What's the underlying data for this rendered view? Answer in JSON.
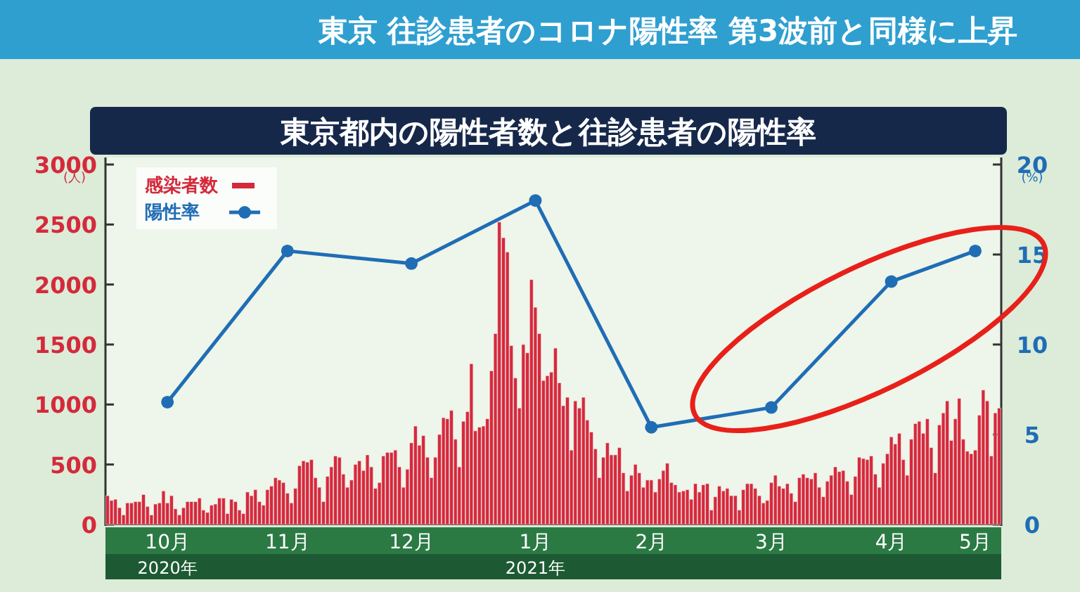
{
  "chart_data": {
    "type": "bar",
    "subtitle": "東京 往診患者のコロナ陽性率 第3波前と同様に上昇",
    "title": "東京都内の陽性者数と往診患者の陽性率",
    "categories": [
      null,
      null,
      null,
      null,
      null,
      null,
      null,
      null,
      null,
      null,
      null,
      null,
      null,
      null,
      null,
      "10月",
      null,
      null,
      null,
      null,
      null,
      null,
      null,
      null,
      null,
      null,
      null,
      null,
      null,
      null,
      null,
      null,
      null,
      null,
      null,
      null,
      null,
      null,
      null,
      null,
      null,
      null,
      null,
      null,
      null,
      "11月",
      null,
      null,
      null,
      null,
      null,
      null,
      null,
      null,
      null,
      null,
      null,
      null,
      null,
      null,
      null,
      null,
      null,
      null,
      null,
      null,
      null,
      null,
      null,
      null,
      null,
      null,
      null,
      null,
      null,
      null,
      "12月",
      null,
      null,
      null,
      null,
      null,
      null,
      null,
      null,
      null,
      null,
      null,
      null,
      null,
      null,
      null,
      null,
      null,
      null,
      null,
      null,
      null,
      null,
      null,
      null,
      null,
      null,
      null,
      null,
      null,
      null,
      "1月",
      null,
      null,
      null,
      null,
      null,
      null,
      null,
      null,
      null,
      null,
      null,
      null,
      null,
      null,
      null,
      null,
      null,
      null,
      null,
      null,
      null,
      null,
      null,
      null,
      null,
      null,
      null,
      null,
      "2月",
      null,
      null,
      null,
      null,
      null,
      null,
      null,
      null,
      null,
      null,
      null,
      null,
      null,
      null,
      null,
      null,
      null,
      null,
      null,
      null,
      null,
      null,
      null,
      null,
      null,
      null,
      null,
      null,
      null,
      "3月",
      null,
      null,
      null,
      null,
      null,
      null,
      null,
      null,
      null,
      null,
      null,
      null,
      null,
      null,
      null,
      null,
      null,
      null,
      null,
      null,
      null,
      null,
      null,
      null,
      null,
      null,
      null,
      null,
      null,
      "4月",
      null,
      null,
      null,
      null,
      null,
      null,
      null,
      null,
      null,
      null,
      null,
      null,
      null,
      null,
      null,
      null,
      null,
      null,
      null,
      null,
      "5月",
      null,
      null,
      null,
      null,
      null,
      null
    ],
    "series": [
      {
        "name": "感染者数",
        "color": "#d42a3c",
        "values": [
          240,
          200,
          210,
          140,
          80,
          180,
          180,
          190,
          190,
          250,
          150,
          80,
          170,
          180,
          280,
          180,
          240,
          130,
          80,
          140,
          190,
          190,
          190,
          220,
          120,
          100,
          160,
          170,
          220,
          220,
          90,
          210,
          190,
          120,
          90,
          270,
          240,
          290,
          190,
          160,
          290,
          320,
          390,
          370,
          350,
          260,
          180,
          300,
          490,
          530,
          520,
          540,
          390,
          310,
          190,
          400,
          480,
          570,
          560,
          420,
          310,
          370,
          500,
          530,
          450,
          580,
          480,
          300,
          350,
          570,
          600,
          600,
          620,
          480,
          310,
          460,
          680,
          820,
          660,
          740,
          560,
          390,
          560,
          750,
          890,
          880,
          950,
          710,
          480,
          860,
          940,
          1340,
          780,
          810,
          820,
          880,
          1280,
          1590,
          2520,
          2390,
          2270,
          1490,
          1220,
          970,
          1500,
          1430,
          2040,
          1810,
          1590,
          1200,
          1240,
          1270,
          1470,
          1180,
          990,
          1060,
          620,
          1030,
          970,
          1060,
          870,
          770,
          630,
          390,
          560,
          680,
          580,
          580,
          640,
          430,
          280,
          410,
          500,
          430,
          310,
          370,
          370,
          270,
          380,
          450,
          510,
          350,
          330,
          270,
          280,
          290,
          210,
          340,
          270,
          330,
          340,
          120,
          230,
          320,
          280,
          300,
          240,
          240,
          120,
          290,
          340,
          340,
          300,
          240,
          180,
          200,
          350,
          410,
          320,
          300,
          340,
          260,
          190,
          390,
          420,
          390,
          380,
          430,
          310,
          230,
          360,
          410,
          480,
          440,
          450,
          360,
          250,
          400,
          560,
          550,
          540,
          570,
          420,
          310,
          510,
          590,
          730,
          670,
          760,
          540,
          410,
          710,
          840,
          860,
          760,
          880,
          640,
          430,
          830,
          930,
          1030,
          700,
          880,
          1050,
          710,
          610,
          590,
          620,
          910,
          1120,
          1030,
          570,
          930,
          970
        ]
      },
      {
        "name": "陽性率",
        "type": "line",
        "axis": "y2",
        "color": "#1f6db5",
        "x": [
          "10月",
          "11月",
          "12月",
          "1月",
          "2月",
          "3月",
          "4月",
          "5月"
        ],
        "values": [
          6.8,
          15.2,
          14.5,
          18.0,
          5.4,
          6.5,
          13.5,
          15.2
        ]
      }
    ],
    "ylabel": "(人)",
    "y2label": "(%)",
    "ylim": [
      0,
      3000
    ],
    "yticks": [
      0,
      500,
      1000,
      1500,
      2000,
      2500,
      3000
    ],
    "y2lim": [
      0,
      20
    ],
    "y2ticks": [
      0,
      5,
      10,
      15,
      20
    ],
    "legend": "top left",
    "marker": "circle",
    "annotations": [
      "2020年",
      "2021年"
    ]
  }
}
